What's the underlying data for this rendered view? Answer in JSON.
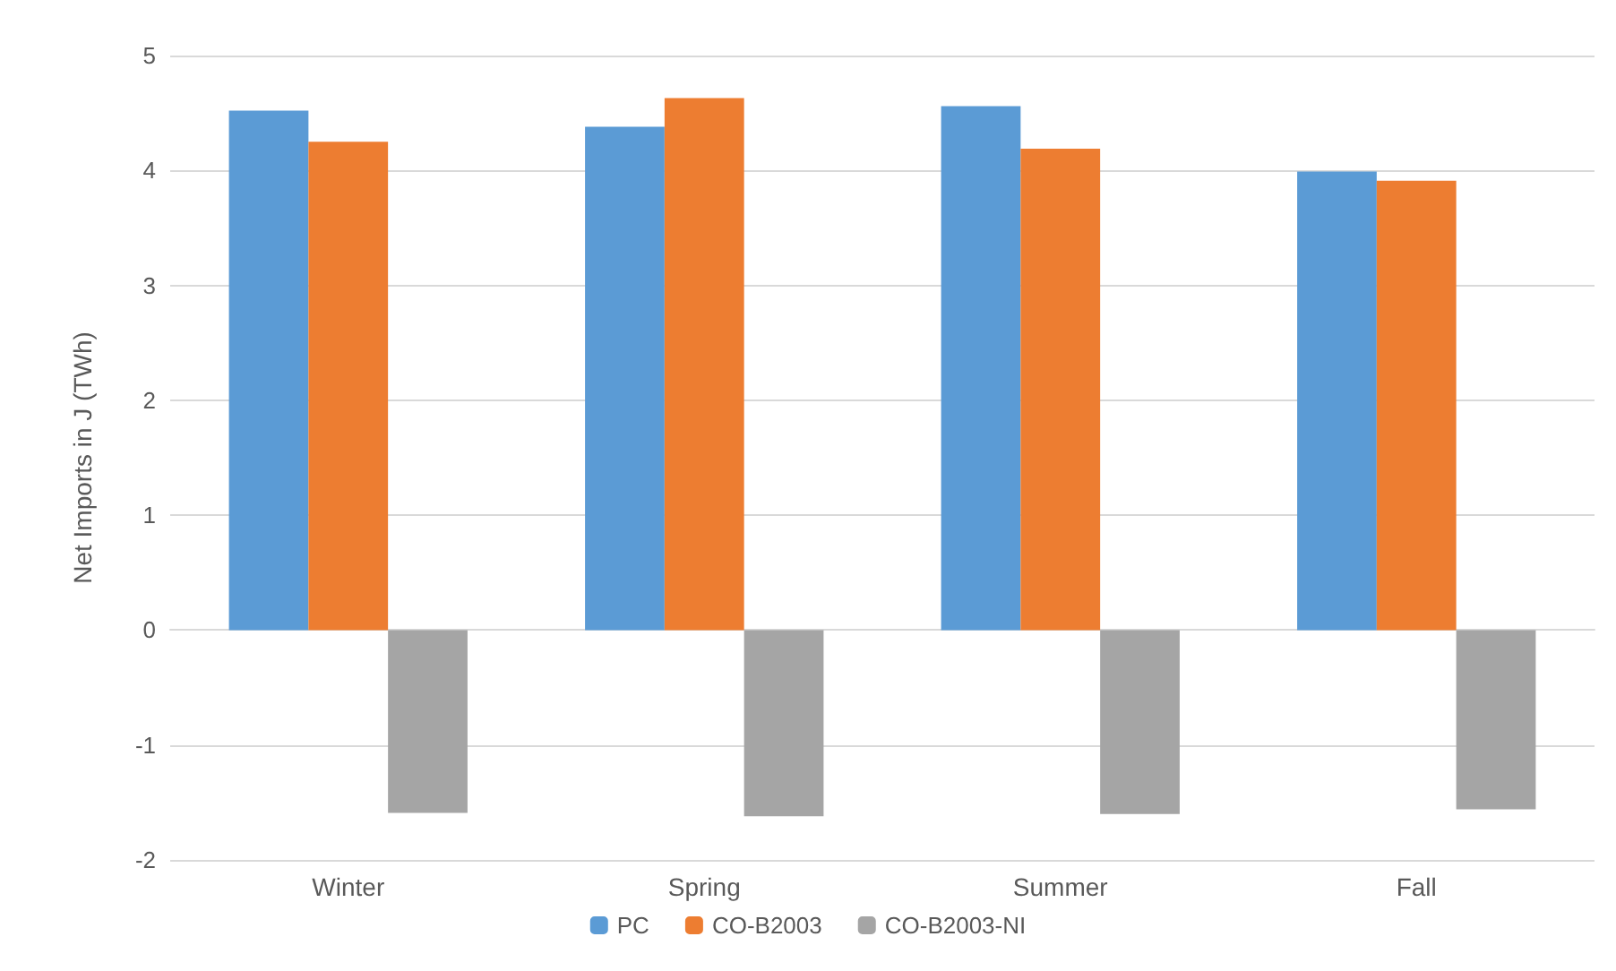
{
  "chart_data": {
    "type": "bar",
    "ylabel": "Net Imports in J (TWh)",
    "categories": [
      "Winter",
      "Spring",
      "Summer",
      "Fall"
    ],
    "series": [
      {
        "name": "PC",
        "color": "#5b9bd5",
        "values": [
          4.52,
          4.38,
          4.56,
          3.99
        ]
      },
      {
        "name": "CO-B2003",
        "color": "#ed7d31",
        "values": [
          4.25,
          4.63,
          4.19,
          3.91
        ]
      },
      {
        "name": "CO-B2003-NI",
        "color": "#a5a5a5",
        "values": [
          -1.59,
          -1.62,
          -1.6,
          -1.56
        ]
      }
    ],
    "ylim": [
      -2,
      5
    ],
    "yticks": [
      -2,
      -1,
      0,
      1,
      2,
      3,
      4,
      5
    ],
    "grid": "y",
    "legend": "bottom"
  }
}
